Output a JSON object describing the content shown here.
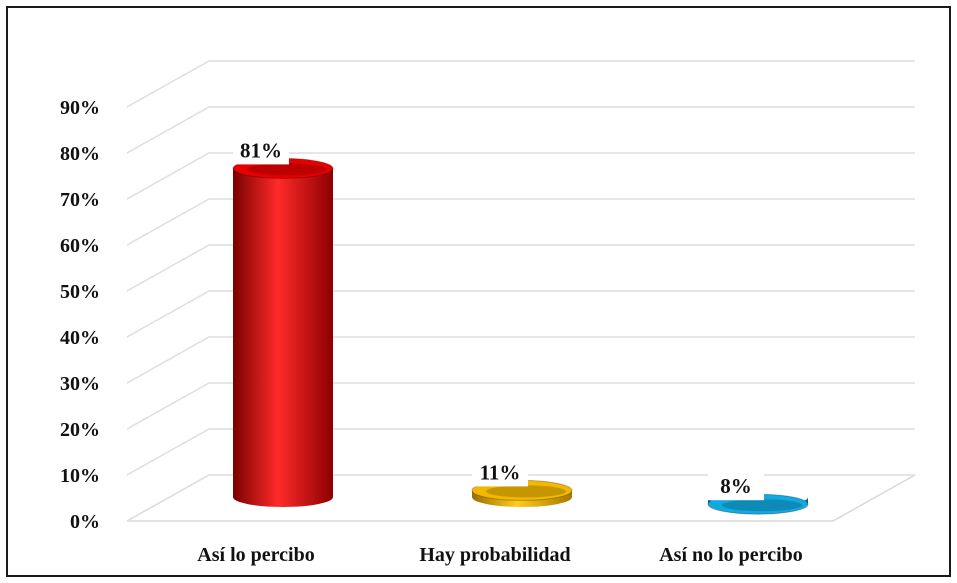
{
  "chart_data": {
    "type": "bar",
    "style": "3d-cylinder",
    "title": "",
    "xlabel": "",
    "ylabel": "",
    "categories": [
      "Así lo percibo",
      "Hay probabilidad",
      "Así no lo percibo"
    ],
    "values": [
      81,
      11,
      8
    ],
    "data_labels": [
      "81%",
      "11%",
      "8%"
    ],
    "colors": [
      "#e60000",
      "#f2b700",
      "#12a9e0"
    ],
    "ylim": [
      0,
      90
    ],
    "yticks": [
      "0%",
      "10%",
      "20%",
      "30%",
      "40%",
      "50%",
      "60%",
      "70%",
      "80%",
      "90%"
    ],
    "grid": true,
    "legend": "none"
  }
}
